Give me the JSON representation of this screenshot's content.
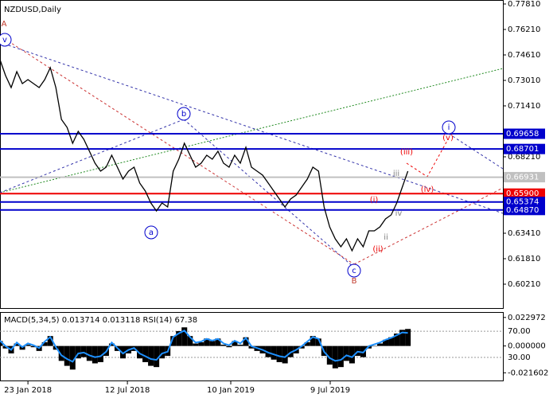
{
  "chart_data": {
    "type": "line",
    "title": "NZDUSD,Daily",
    "color": "#000000",
    "values": [
      0.7431,
      0.7331,
      0.7256,
      0.7356,
      0.7281,
      0.7306,
      0.7281,
      0.7256,
      0.7306,
      0.7381,
      0.7256,
      0.7056,
      0.7006,
      0.6906,
      0.6981,
      0.6931,
      0.6856,
      0.6781,
      0.6731,
      0.6756,
      0.6831,
      0.6756,
      0.6681,
      0.6731,
      0.6756,
      0.6656,
      0.6606,
      0.6531,
      0.6481,
      0.6531,
      0.6506,
      0.6731,
      0.6806,
      0.6906,
      0.6831,
      0.6756,
      0.6781,
      0.6831,
      0.6806,
      0.6856,
      0.6781,
      0.6756,
      0.6831,
      0.6781,
      0.6881,
      0.6756,
      0.6731,
      0.6706,
      0.6656,
      0.6606,
      0.6556,
      0.6506,
      0.6556,
      0.6581,
      0.6631,
      0.6681,
      0.6756,
      0.6731,
      0.6506,
      0.6381,
      0.6306,
      0.6256,
      0.6306,
      0.6231,
      0.6306,
      0.6256,
      0.6356,
      0.6356,
      0.6381,
      0.6431,
      0.6456,
      0.6531,
      0.6631,
      0.6731
    ],
    "xlim": [
      0,
      90
    ],
    "xticks": [
      {
        "value": 5,
        "label": "23 Jan 2018"
      },
      {
        "value": 22.8,
        "label": "12 Jul 2018"
      },
      {
        "value": 41.3,
        "label": "10 Jan 2019"
      },
      {
        "value": 59.1,
        "label": "9 Jul 2019"
      }
    ],
    "ylim": [
      0.5866,
      0.7806
    ],
    "yticks": [
      {
        "value": 0.7781,
        "label": "0.77810"
      },
      {
        "value": 0.7621,
        "label": "0.76210"
      },
      {
        "value": 0.7461,
        "label": "0.74610"
      },
      {
        "value": 0.7301,
        "label": "0.73010"
      },
      {
        "value": 0.7141,
        "label": "0.71410"
      },
      {
        "value": 0.6821,
        "label": "0.68210"
      },
      {
        "value": 0.6341,
        "label": "0.63410"
      },
      {
        "value": 0.6181,
        "label": "0.61810"
      },
      {
        "value": 0.6021,
        "label": "0.60210"
      }
    ],
    "levels": [
      {
        "value": 0.69658,
        "label": "0.69658",
        "color": "#0000cc"
      },
      {
        "value": 0.68701,
        "label": "0.68701",
        "color": "#0000cc"
      },
      {
        "value": 0.66931,
        "label": "0.66931",
        "color": "#c0c0c0"
      },
      {
        "value": 0.659,
        "label": "0.65900",
        "color": "#ee0000"
      },
      {
        "value": 0.65374,
        "label": "0.65374",
        "color": "#0000cc"
      },
      {
        "value": 0.6487,
        "label": "0.64870",
        "color": "#0000cc"
      }
    ],
    "annotations": [
      {
        "text": "A",
        "color": "#c0392b"
      },
      {
        "text": "v",
        "color": "#0000cc",
        "circled": true
      },
      {
        "text": "a",
        "color": "#0000cc",
        "circled": true
      },
      {
        "text": "b",
        "color": "#0000cc",
        "circled": true
      },
      {
        "text": "c",
        "color": "#0000cc",
        "circled": true
      },
      {
        "text": "B",
        "color": "#c0392b"
      },
      {
        "text": "i",
        "color": "#0000cc",
        "circled": true
      },
      {
        "text": "(v)",
        "color": "#ee0000"
      },
      {
        "text": "(iii)",
        "color": "#ee0000"
      },
      {
        "text": "iii",
        "color": "#808080"
      },
      {
        "text": "(iv)",
        "color": "#ee0000"
      },
      {
        "text": "(i)",
        "color": "#ee0000"
      },
      {
        "text": "iv",
        "color": "#808080"
      },
      {
        "text": "ii",
        "color": "#808080"
      },
      {
        "text": "(ii)",
        "color": "#ee0000"
      }
    ],
    "indicator": {
      "label": "MACD(5,34,5) 0.013714 0.013118 RSI(14) 67.38",
      "ylim": [
        -0.0278,
        0.0267
      ],
      "yticks": [
        {
          "value": 0.022972,
          "label": "0.022972"
        },
        {
          "value": 0,
          "label": "0.000000"
        },
        {
          "value": -0.021602,
          "label": "-0.021602"
        }
      ],
      "y2lim": [
        -5.3,
        98.2
      ],
      "y2ticks": [
        {
          "value": 70,
          "label": "70.00"
        },
        {
          "value": 30,
          "label": "30.00"
        }
      ],
      "series": [
        {
          "name": "MACD",
          "type": "bar",
          "color": "#000000",
          "values": [
            0.004,
            -0.002,
            -0.006,
            0.002,
            -0.003,
            0.001,
            -0.001,
            -0.004,
            0.003,
            0.008,
            -0.003,
            -0.012,
            -0.016,
            -0.019,
            -0.01,
            -0.009,
            -0.012,
            -0.014,
            -0.013,
            -0.008,
            0.002,
            -0.004,
            -0.01,
            -0.006,
            -0.004,
            -0.01,
            -0.013,
            -0.016,
            -0.017,
            -0.01,
            -0.008,
            0.008,
            0.012,
            0.015,
            0.008,
            0.002,
            0.003,
            0.006,
            0.004,
            0.006,
            0.001,
            -0.001,
            0.004,
            0.001,
            0.007,
            -0.002,
            -0.004,
            -0.006,
            -0.009,
            -0.011,
            -0.013,
            -0.014,
            -0.009,
            -0.006,
            -0.002,
            0.003,
            0.008,
            0.006,
            -0.008,
            -0.015,
            -0.018,
            -0.017,
            -0.012,
            -0.014,
            -0.008,
            -0.009,
            -0.002,
            0.0,
            0.002,
            0.005,
            0.007,
            0.01,
            0.013,
            0.0137
          ]
        },
        {
          "name": "RSI",
          "type": "line",
          "axis": "y2",
          "color": "#1e90ff",
          "values": [
            55.6,
            47.2,
            41.6,
            52.8,
            45.8,
            51.4,
            48.6,
            44.4,
            54.2,
            61.2,
            45.8,
            33.2,
            27.6,
            23.4,
            36,
            37.4,
            33.2,
            30.4,
            31.8,
            38.8,
            52.8,
            44.4,
            36,
            41.6,
            44.4,
            36,
            31.8,
            27.6,
            26.2,
            36,
            38.8,
            61.2,
            66.8,
            71,
            61.2,
            52.8,
            54.2,
            58.4,
            55.6,
            58.4,
            51.4,
            48.6,
            55.6,
            51.4,
            59.8,
            47.2,
            44.4,
            41.6,
            37.4,
            34.6,
            31.8,
            30.4,
            37.4,
            41.6,
            47.2,
            54.2,
            61.2,
            58.4,
            38.8,
            29,
            24.8,
            26.2,
            33.2,
            30.4,
            38.8,
            37.4,
            47.2,
            50,
            52.8,
            57,
            59.8,
            64,
            68.2,
            67.38
          ]
        }
      ]
    }
  }
}
